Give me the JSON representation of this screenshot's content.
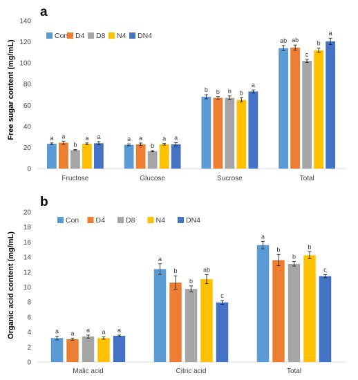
{
  "chart_data": [
    {
      "panel": "a",
      "type": "bar",
      "ylabel": "Free sugar content  (mg/mL)",
      "xlabel": "",
      "ylim": [
        0,
        140
      ],
      "yticks": [
        0,
        20,
        40,
        60,
        80,
        100,
        120,
        140
      ],
      "grid": false,
      "legend_position": "top-left",
      "categories": [
        "Fructose",
        "Glucose",
        "Sucrose",
        "Total"
      ],
      "series": [
        {
          "name": "Con",
          "color": "#5b9bd5",
          "values": [
            23.5,
            22.5,
            68,
            114
          ],
          "errors": [
            0.8,
            0.9,
            2.0,
            2.5
          ],
          "letters": [
            "a",
            "a",
            "b",
            "ab"
          ]
        },
        {
          "name": "D4",
          "color": "#ed7d31",
          "values": [
            24.5,
            23.0,
            67,
            114.5
          ],
          "errors": [
            1.5,
            1.2,
            1.2,
            2.5
          ],
          "letters": [
            "a",
            "a",
            "b",
            "ab"
          ]
        },
        {
          "name": "D8",
          "color": "#a5a5a5",
          "values": [
            17.5,
            16.5,
            67,
            102
          ],
          "errors": [
            0.5,
            0.5,
            1.8,
            1.5
          ],
          "letters": [
            "b",
            "b",
            "b",
            "c"
          ]
        },
        {
          "name": "N4",
          "color": "#ffc000",
          "values": [
            23.5,
            23.0,
            65,
            112
          ],
          "errors": [
            0.8,
            0.8,
            2.0,
            2.0
          ],
          "letters": [
            "a",
            "a",
            "b",
            "b"
          ]
        },
        {
          "name": "DN4",
          "color": "#4472c4",
          "values": [
            24.0,
            23.0,
            73,
            120.5
          ],
          "errors": [
            1.5,
            1.5,
            1.5,
            3.0
          ],
          "letters": [
            "a",
            "a",
            "a",
            "a"
          ]
        }
      ]
    },
    {
      "panel": "b",
      "type": "bar",
      "ylabel": "Organic acid content  (mg/mL)",
      "xlabel": "",
      "ylim": [
        0,
        20
      ],
      "yticks": [
        0,
        2,
        4,
        6,
        8,
        10,
        12,
        14,
        16,
        18,
        20
      ],
      "grid": false,
      "legend_position": "top-left",
      "categories": [
        "Malic acid",
        "Citric acid",
        "Total"
      ],
      "series": [
        {
          "name": "Con",
          "color": "#5b9bd5",
          "values": [
            3.2,
            12.4,
            15.6
          ],
          "errors": [
            0.25,
            0.7,
            0.5
          ],
          "letters": [
            "a",
            "a",
            "a"
          ]
        },
        {
          "name": "D4",
          "color": "#ed7d31",
          "values": [
            3.05,
            10.6,
            13.6
          ],
          "errors": [
            0.15,
            0.9,
            0.75
          ],
          "letters": [
            "a",
            "b",
            "b"
          ]
        },
        {
          "name": "D8",
          "color": "#a5a5a5",
          "values": [
            3.4,
            9.75,
            13.1
          ],
          "errors": [
            0.2,
            0.4,
            0.3
          ],
          "letters": [
            "a",
            "b",
            "b"
          ]
        },
        {
          "name": "N4",
          "color": "#ffc000",
          "values": [
            3.2,
            11.05,
            14.25
          ],
          "errors": [
            0.15,
            0.6,
            0.45
          ],
          "letters": [
            "a",
            "ab",
            "b"
          ]
        },
        {
          "name": "DN4",
          "color": "#4472c4",
          "values": [
            3.5,
            7.95,
            11.45
          ],
          "errors": [
            0.1,
            0.25,
            0.2
          ],
          "letters": [
            "a",
            "c",
            "c"
          ]
        }
      ]
    }
  ]
}
